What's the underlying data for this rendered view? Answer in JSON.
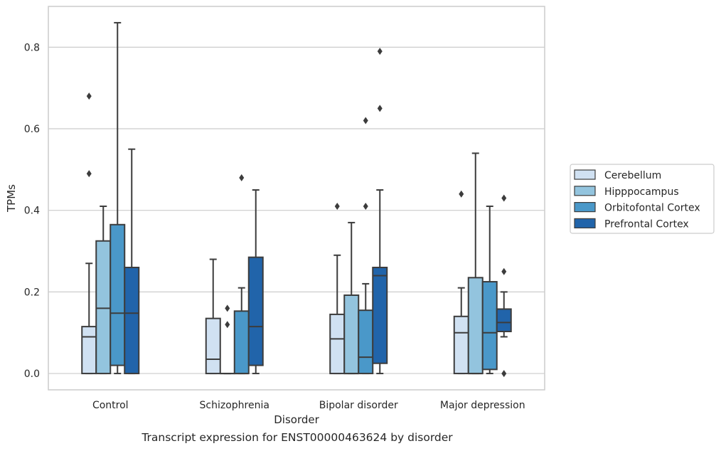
{
  "caption": "Transcript expression for ENST00000463624 by disorder",
  "chart_data": {
    "type": "box",
    "xlabel": "Disorder",
    "ylabel": "TPMs",
    "categories": [
      "Control",
      "Schizophrenia",
      "Bipolar disorder",
      "Major depression"
    ],
    "ylim": [
      -0.04,
      0.9
    ],
    "yticks": [
      0.0,
      0.2,
      0.4,
      0.6,
      0.8
    ],
    "ytick_labels": [
      "0.0",
      "0.2",
      "0.4",
      "0.6",
      "0.8"
    ],
    "grid": "horizontal",
    "legend_position": "right, outside plot",
    "colors": {
      "Cerebellum": "#d0e1f2",
      "Hipppocampus": "#93c4de",
      "Orbitofontal Cortex": "#4a98c9",
      "Prefrontal Cortex": "#2164aa"
    },
    "series": [
      {
        "name": "Cerebellum",
        "boxes": [
          {
            "min": 0.0,
            "q1": 0.0,
            "median": 0.09,
            "q3": 0.115,
            "max": 0.27,
            "outliers": [
              0.49,
              0.68
            ]
          },
          {
            "min": 0.0,
            "q1": 0.0,
            "median": 0.035,
            "q3": 0.135,
            "max": 0.28,
            "outliers": []
          },
          {
            "min": 0.0,
            "q1": 0.0,
            "median": 0.085,
            "q3": 0.145,
            "max": 0.29,
            "outliers": [
              0.41
            ]
          },
          {
            "min": 0.0,
            "q1": 0.0,
            "median": 0.1,
            "q3": 0.14,
            "max": 0.21,
            "outliers": [
              0.44
            ]
          }
        ]
      },
      {
        "name": "Hipppocampus",
        "boxes": [
          {
            "min": 0.0,
            "q1": 0.0,
            "median": 0.16,
            "q3": 0.325,
            "max": 0.41,
            "outliers": []
          },
          {
            "min": 0.0,
            "q1": 0.0,
            "median": 0.0,
            "q3": 0.0,
            "max": 0.0,
            "outliers": [
              0.12,
              0.16
            ]
          },
          {
            "min": 0.0,
            "q1": 0.0,
            "median": 0.0,
            "q3": 0.192,
            "max": 0.37,
            "outliers": []
          },
          {
            "min": 0.0,
            "q1": 0.0,
            "median": 0.0,
            "q3": 0.235,
            "max": 0.54,
            "outliers": []
          }
        ]
      },
      {
        "name": "Orbitofontal Cortex",
        "boxes": [
          {
            "min": 0.0,
            "q1": 0.02,
            "median": 0.148,
            "q3": 0.365,
            "max": 0.86,
            "outliers": []
          },
          {
            "min": 0.0,
            "q1": 0.0,
            "median": 0.0,
            "q3": 0.153,
            "max": 0.21,
            "outliers": [
              0.48
            ]
          },
          {
            "min": 0.0,
            "q1": 0.0,
            "median": 0.04,
            "q3": 0.155,
            "max": 0.22,
            "outliers": [
              0.41,
              0.62
            ]
          },
          {
            "min": 0.0,
            "q1": 0.01,
            "median": 0.1,
            "q3": 0.225,
            "max": 0.41,
            "outliers": []
          }
        ]
      },
      {
        "name": "Prefrontal Cortex",
        "boxes": [
          {
            "min": 0.0,
            "q1": 0.0,
            "median": 0.148,
            "q3": 0.26,
            "max": 0.55,
            "outliers": []
          },
          {
            "min": 0.0,
            "q1": 0.02,
            "median": 0.115,
            "q3": 0.285,
            "max": 0.45,
            "outliers": []
          },
          {
            "min": 0.0,
            "q1": 0.025,
            "median": 0.24,
            "q3": 0.26,
            "max": 0.45,
            "outliers": [
              0.65,
              0.79
            ]
          },
          {
            "min": 0.09,
            "q1": 0.103,
            "median": 0.125,
            "q3": 0.158,
            "max": 0.2,
            "outliers": [
              0.0,
              0.25,
              0.43
            ]
          }
        ]
      }
    ]
  }
}
